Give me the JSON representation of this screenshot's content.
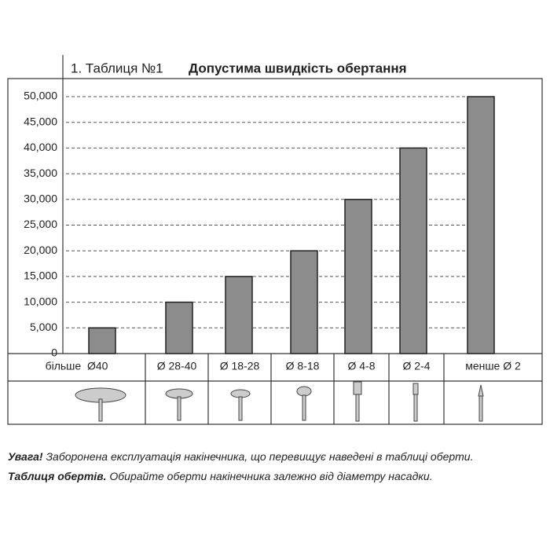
{
  "chart_data": {
    "type": "bar",
    "title_number": "1. Таблиця №1",
    "title": "Допустима швидкість обертання",
    "categories": [
      "більше  Ø40",
      "Ø 28-40",
      "Ø 18-28",
      "Ø 8-18",
      "Ø 4-8",
      "Ø 2-4",
      "менше Ø 2"
    ],
    "values": [
      5000,
      10000,
      15000,
      20000,
      30000,
      40000,
      50000
    ],
    "color": "#8c8c8c",
    "ylim": [
      0,
      50000
    ],
    "yticks": [
      0,
      {
        "value": 5000,
        "label": "5,000"
      },
      {
        "value": 10000,
        "label": "10,000"
      },
      {
        "value": 15000,
        "label": "15,000"
      },
      {
        "value": 20000,
        "label": "20,000"
      },
      {
        "value": 25000,
        "label": "25,000"
      },
      {
        "value": 30000,
        "label": "30,000"
      },
      {
        "value": 35000,
        "label": "35,000"
      },
      {
        "value": 40000,
        "label": "40,000"
      },
      {
        "value": 45000,
        "label": "45,000"
      },
      {
        "value": 50000,
        "label": "50,000"
      }
    ],
    "grid": true
  },
  "notes": [
    {
      "lead": "Увага!",
      "text": " Заборонена експлуатація накінечника, що перевищує наведені в таблиці оберти."
    },
    {
      "lead": "Таблиця обертів.",
      "text": " Обирайте оберти накінечника залежно від діаметру насадки."
    }
  ]
}
